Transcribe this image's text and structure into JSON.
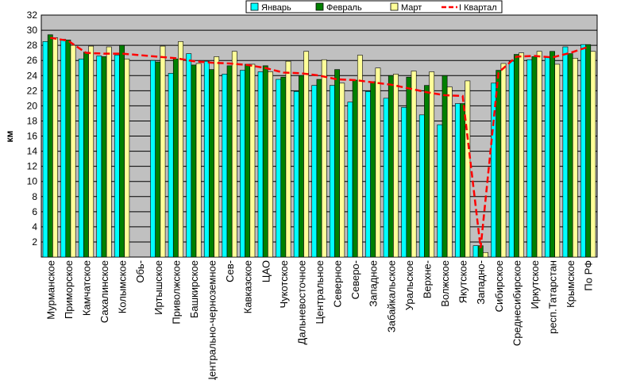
{
  "chart_data": {
    "type": "bar",
    "title": "",
    "ylabel": "км",
    "xlabel": "",
    "ylim": [
      0,
      32
    ],
    "yticks": [
      2,
      4,
      6,
      8,
      10,
      12,
      14,
      16,
      18,
      20,
      22,
      24,
      26,
      28,
      30,
      32
    ],
    "grid": true,
    "legend_position": "top-right",
    "categories": [
      "Мурманское",
      "Приморское",
      "Камчатское",
      "Сахалинское",
      "Колымское",
      "Обь-",
      "Иртышское",
      "Приволжское",
      "Башкирское",
      "Центрально-черноземное",
      "Сев-",
      "Кавказское",
      "ЦАО",
      "Чукотское",
      "Дальневосточное",
      "Центральное",
      "Северное",
      "Северо-",
      "Западное",
      "Забайкальское",
      "Уральское",
      "Верхне-",
      "Волжское",
      "Якутское",
      "Западно-",
      "Сибирское",
      "Среднесибирское",
      "Иркутское",
      "респ.Татарстан",
      "Крымское",
      "По РФ"
    ],
    "series": [
      {
        "name": "Январь",
        "type": "bar",
        "color": "#00ffff",
        "values": [
          28.5,
          28.8,
          26.2,
          26.6,
          26.7,
          0,
          26.0,
          24.3,
          26.9,
          25.9,
          24.2,
          24.7,
          24.5,
          23.5,
          21.9,
          22.7,
          22.7,
          20.5,
          21.9,
          21.0,
          19.8,
          18.8,
          17.5,
          20.3,
          1.5,
          23.0,
          25.9,
          26.1,
          26.5,
          27.8,
          28.1
        ]
      },
      {
        "name": "Февраль",
        "type": "bar",
        "color": "#008000",
        "values": [
          29.4,
          28.7,
          27.1,
          26.5,
          28.0,
          0,
          25.8,
          26.2,
          25.4,
          24.8,
          25.3,
          25.5,
          25.3,
          23.8,
          24.0,
          23.5,
          24.8,
          23.4,
          23.2,
          24.0,
          23.8,
          22.7,
          24.0,
          20.3,
          1.5,
          24.7,
          26.8,
          26.5,
          27.2,
          26.9,
          28.1
        ]
      },
      {
        "name": "Март",
        "type": "bar",
        "color": "#ffff99",
        "values": [
          29.0,
          28.0,
          27.9,
          27.8,
          26.2,
          0,
          27.9,
          28.5,
          25.6,
          26.5,
          27.2,
          25.5,
          24.5,
          25.9,
          27.2,
          26.1,
          23.0,
          26.7,
          25.0,
          24.2,
          24.6,
          24.5,
          22.5,
          23.3,
          0.6,
          25.6,
          27.0,
          27.2,
          25.5,
          26.3,
          27.2
        ]
      },
      {
        "name": "I Квартал",
        "type": "line",
        "color": "#ff0000",
        "values": [
          29.0,
          28.6,
          27.0,
          26.9,
          26.9,
          0,
          26.5,
          26.3,
          25.9,
          25.7,
          25.6,
          25.4,
          25.0,
          24.4,
          24.3,
          24.0,
          23.5,
          23.4,
          23.1,
          22.8,
          22.3,
          21.8,
          21.4,
          21.3,
          1.2,
          24.4,
          26.5,
          26.6,
          26.4,
          27.0,
          27.8
        ]
      }
    ]
  }
}
